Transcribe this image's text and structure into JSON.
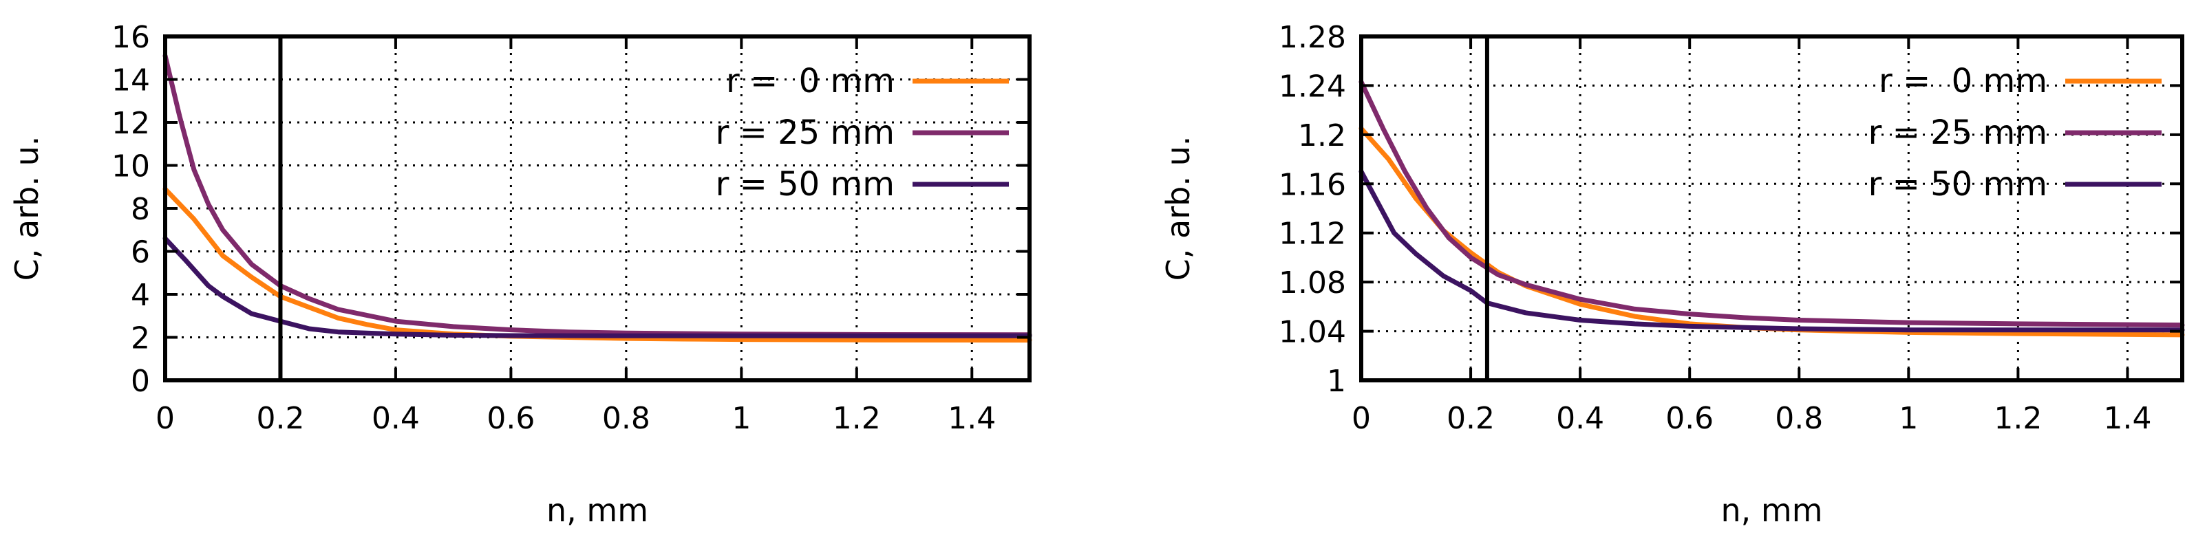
{
  "chart_data": [
    {
      "type": "line",
      "xlabel": "n, mm",
      "ylabel": "C, arb. u.",
      "xlim": [
        0,
        1.5
      ],
      "ylim": [
        0,
        16
      ],
      "xticks": [
        0,
        0.2,
        0.4,
        0.6,
        0.8,
        1,
        1.2,
        1.4
      ],
      "xtick_labels": [
        "0",
        "0.2",
        "0.4",
        "0.6",
        "0.8",
        "1",
        "1.2",
        "1.4"
      ],
      "yticks": [
        0,
        2,
        4,
        6,
        8,
        10,
        12,
        14,
        16
      ],
      "ytick_labels": [
        "0",
        "2",
        "4",
        "6",
        "8",
        "10",
        "12",
        "14",
        "16"
      ],
      "grid": true,
      "legend_position": "top-right",
      "vline_x": 0.2,
      "series": [
        {
          "name": "r =  0 mm",
          "color": "#ff7f0e",
          "x": [
            0,
            0.05,
            0.1,
            0.15,
            0.2,
            0.25,
            0.3,
            0.35,
            0.4,
            0.5,
            0.6,
            0.7,
            0.8,
            0.9,
            1.0,
            1.2,
            1.5
          ],
          "y": [
            8.9,
            7.5,
            5.8,
            4.8,
            3.9,
            3.4,
            2.9,
            2.6,
            2.35,
            2.15,
            2.05,
            2.0,
            1.95,
            1.92,
            1.9,
            1.88,
            1.87
          ]
        },
        {
          "name": "r = 25 mm",
          "color": "#7f2a6b",
          "x": [
            0,
            0.025,
            0.05,
            0.075,
            0.1,
            0.15,
            0.2,
            0.25,
            0.3,
            0.4,
            0.5,
            0.6,
            0.7,
            0.8,
            1.0,
            1.2,
            1.5
          ],
          "y": [
            15.1,
            12.3,
            9.8,
            8.2,
            7.0,
            5.4,
            4.4,
            3.8,
            3.3,
            2.75,
            2.5,
            2.35,
            2.25,
            2.2,
            2.15,
            2.13,
            2.12
          ]
        },
        {
          "name": "r = 50 mm",
          "color": "#3c1361",
          "x": [
            0,
            0.035,
            0.075,
            0.1,
            0.15,
            0.2,
            0.25,
            0.3,
            0.4,
            0.5,
            0.6,
            0.8,
            1.0,
            1.2,
            1.5
          ],
          "y": [
            6.6,
            5.6,
            4.4,
            3.9,
            3.1,
            2.75,
            2.4,
            2.25,
            2.15,
            2.1,
            2.08,
            2.07,
            2.07,
            2.07,
            2.07
          ]
        }
      ]
    },
    {
      "type": "line",
      "xlabel": "n, mm",
      "ylabel": "C, arb. u.",
      "xlim": [
        0,
        1.5
      ],
      "ylim": [
        1,
        1.28
      ],
      "xticks": [
        0,
        0.2,
        0.4,
        0.6,
        0.8,
        1,
        1.2,
        1.4
      ],
      "xtick_labels": [
        "0",
        "0.2",
        "0.4",
        "0.6",
        "0.8",
        "1",
        "1.2",
        "1.4"
      ],
      "yticks": [
        1,
        1.04,
        1.08,
        1.12,
        1.16,
        1.2,
        1.24,
        1.28
      ],
      "ytick_labels": [
        "1",
        "1.04",
        "1.08",
        "1.12",
        "1.16",
        "1.2",
        "1.24",
        "1.28"
      ],
      "grid": true,
      "legend_position": "top-right",
      "vline_x": 0.23,
      "series": [
        {
          "name": "r =  0 mm",
          "color": "#ff7f0e",
          "x": [
            0,
            0.05,
            0.1,
            0.15,
            0.2,
            0.25,
            0.3,
            0.4,
            0.5,
            0.6,
            0.7,
            0.8,
            1.0,
            1.2,
            1.5
          ],
          "y": [
            1.205,
            1.18,
            1.148,
            1.122,
            1.104,
            1.088,
            1.077,
            1.062,
            1.052,
            1.046,
            1.043,
            1.041,
            1.039,
            1.038,
            1.037
          ]
        },
        {
          "name": "r = 25 mm",
          "color": "#7f2a6b",
          "x": [
            0,
            0.04,
            0.08,
            0.12,
            0.16,
            0.2,
            0.25,
            0.3,
            0.4,
            0.5,
            0.6,
            0.7,
            0.8,
            1.0,
            1.2,
            1.5
          ],
          "y": [
            1.243,
            1.205,
            1.17,
            1.14,
            1.116,
            1.1,
            1.086,
            1.078,
            1.066,
            1.058,
            1.054,
            1.051,
            1.049,
            1.047,
            1.046,
            1.045
          ]
        },
        {
          "name": "r = 50 mm",
          "color": "#3c1361",
          "x": [
            0,
            0.03,
            0.06,
            0.1,
            0.15,
            0.2,
            0.23,
            0.3,
            0.4,
            0.5,
            0.6,
            0.8,
            1.0,
            1.2,
            1.5
          ],
          "y": [
            1.17,
            1.145,
            1.12,
            1.103,
            1.085,
            1.073,
            1.063,
            1.055,
            1.049,
            1.046,
            1.044,
            1.042,
            1.041,
            1.041,
            1.041
          ]
        }
      ]
    }
  ]
}
